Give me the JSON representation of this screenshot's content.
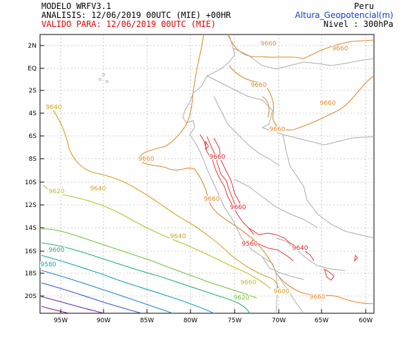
{
  "header": {
    "model": "MODELO WRFV3.1",
    "analysis": "ANALISIS: 12/06/2019 00UTC (MIE) +00HR",
    "valid": "VALIDO PARA: 12/06/2019 00UTC (MIE)",
    "region": "Peru",
    "variable": "Altura_Geopotencial(m)",
    "level": "Nivel : 300hPa"
  },
  "map": {
    "lat_ticks": [
      "2N",
      "EQ",
      "2S",
      "4S",
      "6S",
      "8S",
      "10S",
      "12S",
      "14S",
      "16S",
      "18S",
      "20S"
    ],
    "lon_ticks": [
      "95W",
      "90W",
      "85W",
      "80W",
      "75W",
      "70W",
      "65W",
      "60W"
    ],
    "contour_labels": [
      "9660",
      "9660",
      "9660",
      "9660",
      "9660",
      "9660",
      "9640",
      "9660",
      "9640",
      "9620",
      "9660",
      "9660",
      "9640",
      "9600",
      "9580",
      "9560",
      "9660",
      "9620",
      "9600",
      "9640",
      "9660"
    ],
    "colors": {
      "c9660": "#e08a30",
      "c9640": "#d4a020",
      "c9620": "#b8c020",
      "c9600": "#70c030",
      "c9580": "#20b070",
      "c9560": "#10a0b0",
      "c9540": "#2080d0",
      "c9520": "#3050d0",
      "c9500": "#6020b0",
      "c9480": "#901090",
      "terrain": "#e02020",
      "coast": "#aaaaaa",
      "grid": "#999999"
    }
  }
}
